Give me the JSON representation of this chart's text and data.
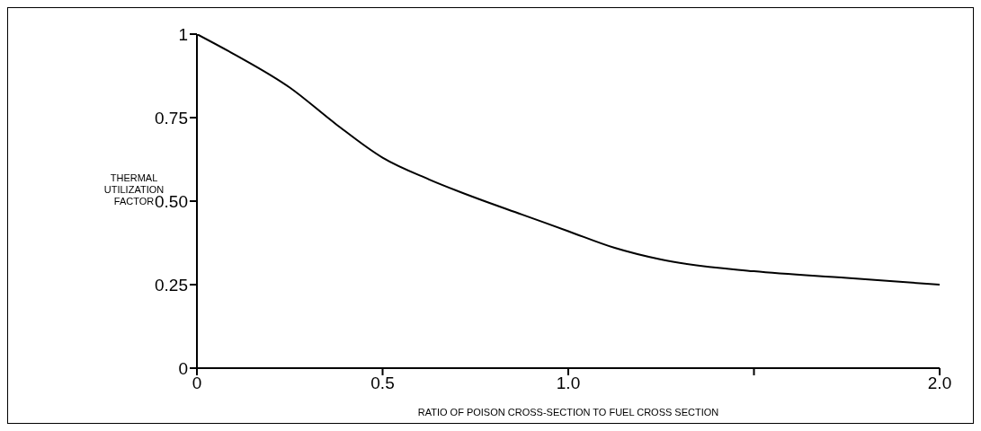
{
  "chart_data": {
    "type": "line",
    "xlabel": "RATIO OF POISON CROSS-SECTION TO FUEL CROSS SECTION",
    "ylabel": "THERMAL UTILIZATION FACTOR",
    "x": [
      0,
      0.1,
      0.25,
      0.375,
      0.5,
      0.625,
      0.75,
      0.875,
      1.0,
      1.125,
      1.25,
      1.5,
      1.75,
      2.0
    ],
    "series": [
      {
        "color": "#000000",
        "values": [
          1,
          0.94,
          0.84,
          0.73,
          0.63,
          0.565,
          0.51,
          0.46,
          0.41,
          0.36,
          0.325,
          0.29,
          0.27,
          0.25
        ]
      }
    ],
    "xlim": [
      0,
      2
    ],
    "xticks": [
      0,
      {
        "value": 0.5,
        "label": "0.5"
      },
      {
        "value": 1,
        "label": "1.0"
      },
      {
        "value": 1.5,
        "label": null
      },
      {
        "value": 2,
        "label": "2.0"
      }
    ],
    "ylim": [
      0,
      1
    ],
    "yticks": [
      0,
      0.25,
      {
        "value": 0.5,
        "label": "0.50"
      },
      0.75,
      1
    ],
    "grid": false,
    "legend": false,
    "marker": "none",
    "line_style": "solid"
  }
}
